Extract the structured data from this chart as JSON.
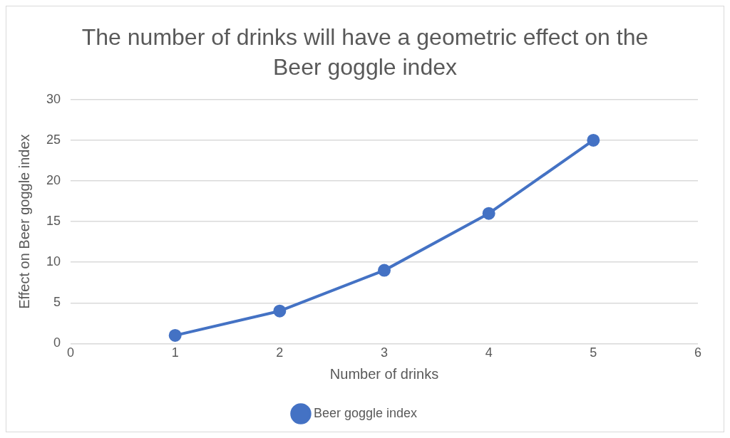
{
  "chart_data": {
    "type": "line",
    "title": "The number of drinks will have a geometric effect on the Beer goggle index",
    "xlabel": "Number of drinks",
    "ylabel": "Effect on Beer goggle index",
    "x": [
      1,
      2,
      3,
      4,
      5
    ],
    "series": [
      {
        "name": "Beer goggle index",
        "color": "#4472c4",
        "values": [
          1,
          4,
          9,
          16,
          25
        ]
      }
    ],
    "xlim": [
      0,
      6
    ],
    "xticks": [
      0,
      1,
      2,
      3,
      4,
      5,
      6
    ],
    "ylim": [
      0,
      30
    ],
    "yticks": [
      0,
      5,
      10,
      15,
      20,
      25,
      30
    ],
    "grid": "y",
    "legend": "bottom",
    "marker": "circle",
    "line_style": "solid"
  }
}
